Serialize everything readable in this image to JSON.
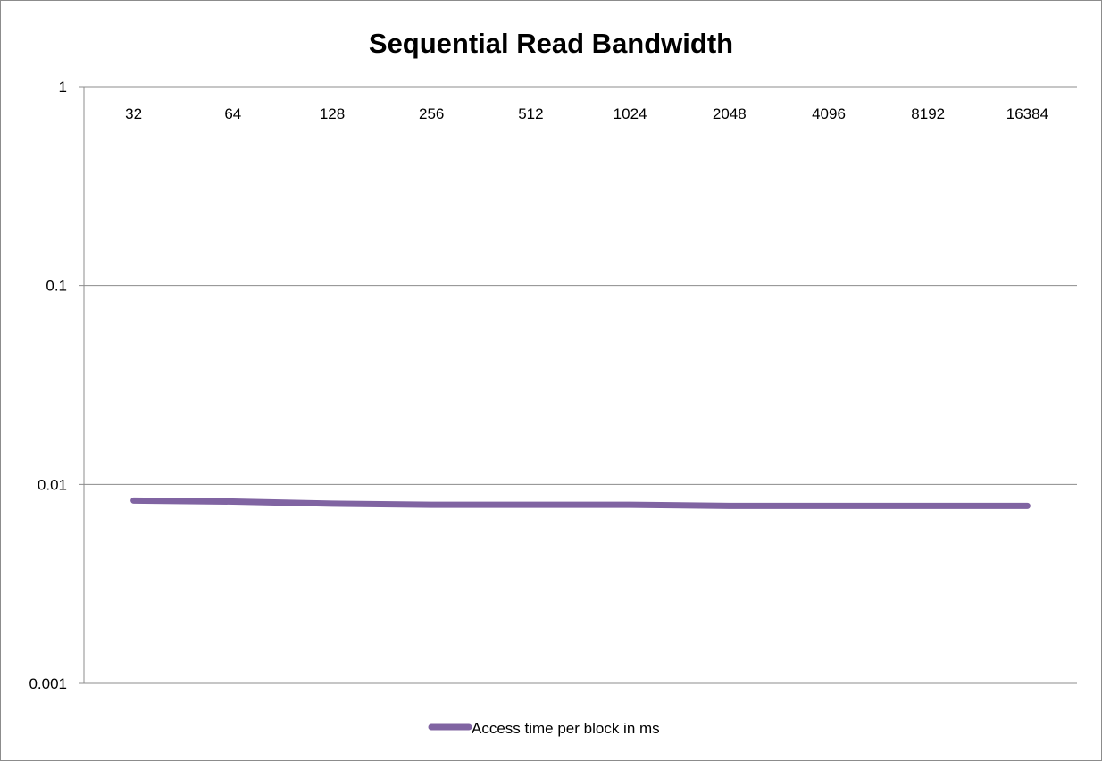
{
  "chart_data": {
    "type": "line",
    "title": "Sequential Read Bandwidth",
    "xlabel": "",
    "ylabel": "",
    "categories": [
      "32",
      "64",
      "128",
      "256",
      "512",
      "1024",
      "2048",
      "4096",
      "8192",
      "16384"
    ],
    "y_scale": "log",
    "ylim": [
      0.001,
      1
    ],
    "y_ticks": [
      "1",
      "0.1",
      "0.01",
      "0.001"
    ],
    "grid": true,
    "legend_position": "bottom",
    "series": [
      {
        "name": "Access time per block in ms",
        "color": "#8064a2",
        "values": [
          0.0083,
          0.0082,
          0.008,
          0.0079,
          0.0079,
          0.0079,
          0.0078,
          0.0078,
          0.0078,
          0.0078
        ]
      }
    ]
  }
}
